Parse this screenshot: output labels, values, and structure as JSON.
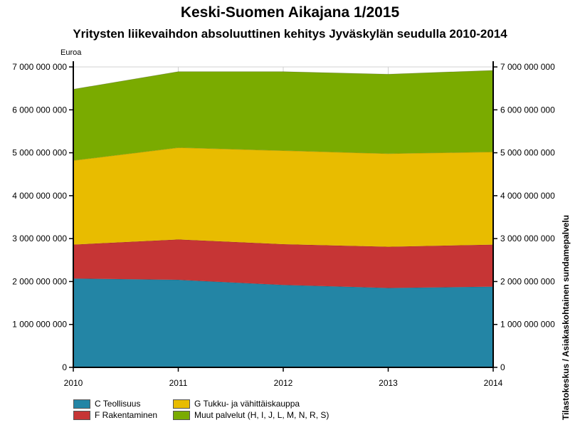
{
  "chart_data": {
    "type": "area",
    "stacked": true,
    "title": "Keski-Suomen Aikajana 1/2015",
    "subtitle": "Yritysten liikevaihdon absoluuttinen kehitys Jyväskylän seudulla 2010-2014",
    "ylabel": "Euroa",
    "source": "Tilastokeskus / Asiakaskohtainen sundamepalvelu",
    "categories": [
      "2010",
      "2011",
      "2012",
      "2013",
      "2014"
    ],
    "ylim": [
      0,
      7000000000
    ],
    "yticks": [
      0,
      1000000000,
      2000000000,
      3000000000,
      4000000000,
      5000000000,
      6000000000,
      7000000000
    ],
    "ytick_labels": [
      "0",
      "1 000 000 000",
      "2 000 000 000",
      "3 000 000 000",
      "4 000 000 000",
      "5 000 000 000",
      "6 000 000 000",
      "7 000 000 000"
    ],
    "grid": true,
    "legend_position": "bottom",
    "series": [
      {
        "name": "C Teollisuus",
        "color": "#2385a5",
        "values": [
          2070000000,
          2040000000,
          1920000000,
          1850000000,
          1880000000
        ]
      },
      {
        "name": "F Rakentaminen",
        "color": "#c63535",
        "values": [
          790000000,
          940000000,
          950000000,
          960000000,
          980000000
        ]
      },
      {
        "name": "G Tukku- ja vähittäiskauppa",
        "color": "#e8bc00",
        "values": [
          1960000000,
          2140000000,
          2180000000,
          2170000000,
          2160000000
        ]
      },
      {
        "name": "Muut palvelut (H, I, J, L, M, N, R, S)",
        "color": "#7aab00",
        "values": [
          1660000000,
          1770000000,
          1840000000,
          1850000000,
          1900000000
        ]
      }
    ]
  }
}
